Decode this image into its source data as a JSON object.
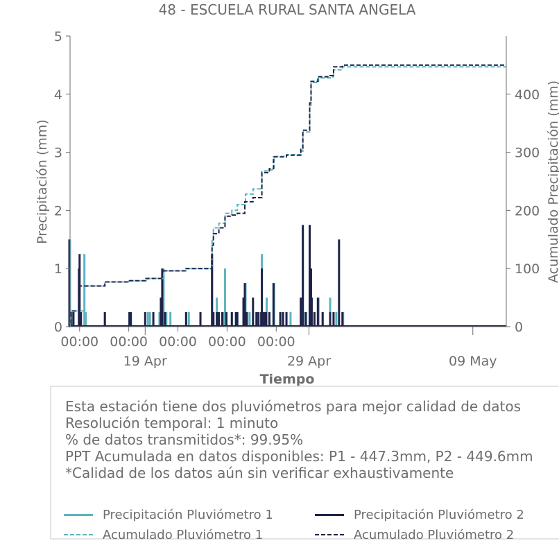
{
  "chart_data": {
    "type": "bar",
    "title": "48 - ESCUELA RURAL SANTA ANGELA",
    "xlabel": "Tiempo",
    "ylabel": "Precipitación (mm)",
    "y2label": "Acumulado Precipitación (mm)",
    "ylim": [
      0,
      5
    ],
    "y2lim": [
      0,
      500
    ],
    "yticks": [
      0,
      1,
      2,
      3,
      4,
      5
    ],
    "y2ticks": [
      0,
      100,
      200,
      300,
      400
    ],
    "xlim": [
      "2024-04-14T10:00",
      "2024-05-11T01:00"
    ],
    "xticks_major": [
      {
        "t": "2024-04-15T00:00",
        "label": "00:00",
        "sublabel": ""
      },
      {
        "t": "2024-04-18T00:00",
        "label": "00:00",
        "sublabel": ""
      },
      {
        "t": "2024-04-21T00:00",
        "label": "00:00",
        "sublabel": ""
      },
      {
        "t": "2024-04-24T00:00",
        "label": "00:00",
        "sublabel": ""
      },
      {
        "t": "2024-04-27T00:00",
        "label": "00:00",
        "sublabel": ""
      }
    ],
    "xticks_dates": [
      {
        "t": "2024-04-19T00:00",
        "label": "19 Apr"
      },
      {
        "t": "2024-04-29T00:00",
        "label": "29 Apr"
      },
      {
        "t": "2024-05-09T00:00",
        "label": "09 May"
      }
    ],
    "grid": false,
    "legend_position": "bottom",
    "series": [
      {
        "name": "Precipitación Pluviómetro 1",
        "kind": "bar",
        "color": "#5bb5bf",
        "points": [
          [
            "2024-04-14T10:00",
            1.5
          ],
          [
            "2024-04-14T11:00",
            0.25
          ],
          [
            "2024-04-14T14:00",
            0.25
          ],
          [
            "2024-04-15T07:00",
            1.25
          ],
          [
            "2024-04-15T09:00",
            0.25
          ],
          [
            "2024-04-16T13:00",
            0.25
          ],
          [
            "2024-04-18T01:00",
            0.25
          ],
          [
            "2024-04-18T03:00",
            0.25
          ],
          [
            "2024-04-19T04:00",
            0.25
          ],
          [
            "2024-04-19T07:00",
            0.25
          ],
          [
            "2024-04-19T21:00",
            0.25
          ],
          [
            "2024-04-20T03:00",
            1.0
          ],
          [
            "2024-04-20T07:00",
            0.25
          ],
          [
            "2024-04-20T13:00",
            0.25
          ],
          [
            "2024-04-21T12:00",
            0.25
          ],
          [
            "2024-04-21T16:00",
            0.25
          ],
          [
            "2024-04-22T09:00",
            0.25
          ],
          [
            "2024-04-23T02:00",
            1.25
          ],
          [
            "2024-04-23T04:00",
            0.25
          ],
          [
            "2024-04-23T09:00",
            0.5
          ],
          [
            "2024-04-23T12:00",
            0.25
          ],
          [
            "2024-04-23T18:00",
            0.25
          ],
          [
            "2024-04-23T21:00",
            1.0
          ],
          [
            "2024-04-23T23:00",
            0.25
          ],
          [
            "2024-04-24T07:00",
            0.25
          ],
          [
            "2024-04-24T13:00",
            0.25
          ],
          [
            "2024-04-24T15:00",
            0.25
          ],
          [
            "2024-04-25T00:00",
            0.25
          ],
          [
            "2024-04-25T03:00",
            0.75
          ],
          [
            "2024-04-25T09:00",
            0.25
          ],
          [
            "2024-04-25T14:00",
            0.25
          ],
          [
            "2024-04-25T22:00",
            0.25
          ],
          [
            "2024-04-26T03:00",
            1.25
          ],
          [
            "2024-04-26T05:00",
            0.25
          ],
          [
            "2024-04-26T10:00",
            0.5
          ],
          [
            "2024-04-26T14:00",
            0.25
          ],
          [
            "2024-04-26T21:00",
            0.75
          ],
          [
            "2024-04-27T06:00",
            0.25
          ],
          [
            "2024-04-27T10:00",
            0.25
          ],
          [
            "2024-04-27T15:00",
            0.25
          ],
          [
            "2024-04-27T21:00",
            0.25
          ],
          [
            "2024-04-28T12:00",
            0.5
          ],
          [
            "2024-04-28T15:00",
            1.75
          ],
          [
            "2024-04-28T20:00",
            0.25
          ],
          [
            "2024-04-29T01:00",
            1.75
          ],
          [
            "2024-04-29T03:00",
            1.0
          ],
          [
            "2024-04-29T08:00",
            0.25
          ],
          [
            "2024-04-29T14:00",
            0.5
          ],
          [
            "2024-04-29T20:00",
            0.25
          ],
          [
            "2024-04-30T07:00",
            0.5
          ],
          [
            "2024-04-30T12:00",
            0.25
          ],
          [
            "2024-04-30T16:00",
            0.25
          ],
          [
            "2024-05-01T02:00",
            0.25
          ]
        ]
      },
      {
        "name": "Precipitación Pluviómetro 2",
        "kind": "bar",
        "color": "#1f2349",
        "points": [
          [
            "2024-04-14T09:00",
            1.5
          ],
          [
            "2024-04-14T11:00",
            0.25
          ],
          [
            "2024-04-14T15:00",
            0.25
          ],
          [
            "2024-04-14T23:00",
            1.0
          ],
          [
            "2024-04-15T00:00",
            1.25
          ],
          [
            "2024-04-15T02:00",
            0.25
          ],
          [
            "2024-04-16T13:00",
            0.25
          ],
          [
            "2024-04-18T01:00",
            0.25
          ],
          [
            "2024-04-18T03:00",
            0.25
          ],
          [
            "2024-04-19T00:00",
            0.25
          ],
          [
            "2024-04-19T12:00",
            0.25
          ],
          [
            "2024-04-19T23:00",
            0.5
          ],
          [
            "2024-04-20T01:00",
            1.0
          ],
          [
            "2024-04-20T05:00",
            0.25
          ],
          [
            "2024-04-21T12:00",
            0.25
          ],
          [
            "2024-04-22T09:00",
            0.25
          ],
          [
            "2024-04-23T02:00",
            1.25
          ],
          [
            "2024-04-23T04:00",
            0.25
          ],
          [
            "2024-04-23T09:00",
            0.25
          ],
          [
            "2024-04-23T12:00",
            0.25
          ],
          [
            "2024-04-23T17:00",
            0.25
          ],
          [
            "2024-04-23T23:00",
            0.25
          ],
          [
            "2024-04-24T07:00",
            0.25
          ],
          [
            "2024-04-24T13:00",
            0.25
          ],
          [
            "2024-04-24T15:00",
            0.25
          ],
          [
            "2024-04-25T00:00",
            0.5
          ],
          [
            "2024-04-25T02:00",
            0.75
          ],
          [
            "2024-04-25T05:00",
            0.25
          ],
          [
            "2024-04-25T14:00",
            0.5
          ],
          [
            "2024-04-25T19:00",
            0.25
          ],
          [
            "2024-04-25T22:00",
            0.25
          ],
          [
            "2024-04-26T02:00",
            0.25
          ],
          [
            "2024-04-26T03:00",
            1.0
          ],
          [
            "2024-04-26T06:00",
            0.25
          ],
          [
            "2024-04-26T09:00",
            0.25
          ],
          [
            "2024-04-26T14:00",
            0.25
          ],
          [
            "2024-04-26T20:00",
            0.75
          ],
          [
            "2024-04-27T06:00",
            0.25
          ],
          [
            "2024-04-27T10:00",
            0.25
          ],
          [
            "2024-04-27T15:00",
            0.25
          ],
          [
            "2024-04-28T12:00",
            0.5
          ],
          [
            "2024-04-28T15:00",
            1.75
          ],
          [
            "2024-04-28T19:00",
            0.25
          ],
          [
            "2024-04-29T01:00",
            1.75
          ],
          [
            "2024-04-29T03:00",
            1.0
          ],
          [
            "2024-04-29T04:00",
            0.5
          ],
          [
            "2024-04-29T08:00",
            0.25
          ],
          [
            "2024-04-29T13:00",
            0.5
          ],
          [
            "2024-04-29T20:00",
            0.25
          ],
          [
            "2024-04-30T07:00",
            0.25
          ],
          [
            "2024-04-30T12:00",
            0.25
          ],
          [
            "2024-04-30T20:00",
            1.5
          ],
          [
            "2024-05-01T01:00",
            0.25
          ]
        ]
      },
      {
        "name": "Acumulado Pluviómetro 1",
        "kind": "step-dashed",
        "color": "#5bb5bf",
        "points": [
          [
            "2024-04-14T10:00",
            15
          ],
          [
            "2024-04-14T11:00",
            27
          ],
          [
            "2024-04-15T07:00",
            70
          ],
          [
            "2024-04-16T13:00",
            77
          ],
          [
            "2024-04-18T01:00",
            79
          ],
          [
            "2024-04-19T04:00",
            83
          ],
          [
            "2024-04-20T03:00",
            96
          ],
          [
            "2024-04-21T12:00",
            100
          ],
          [
            "2024-04-23T02:00",
            150
          ],
          [
            "2024-04-23T04:00",
            170
          ],
          [
            "2024-04-23T12:00",
            178
          ],
          [
            "2024-04-23T21:00",
            195
          ],
          [
            "2024-04-24T07:00",
            200
          ],
          [
            "2024-04-24T15:00",
            210
          ],
          [
            "2024-04-25T03:00",
            228
          ],
          [
            "2024-04-25T14:00",
            237
          ],
          [
            "2024-04-26T03:00",
            268
          ],
          [
            "2024-04-26T14:00",
            270
          ],
          [
            "2024-04-26T21:00",
            293
          ],
          [
            "2024-04-27T15:00",
            296
          ],
          [
            "2024-04-28T12:00",
            302
          ],
          [
            "2024-04-28T15:00",
            335
          ],
          [
            "2024-04-29T01:00",
            380
          ],
          [
            "2024-04-29T03:00",
            420
          ],
          [
            "2024-04-29T14:00",
            428
          ],
          [
            "2024-04-30T07:00",
            430
          ],
          [
            "2024-04-30T12:00",
            442
          ],
          [
            "2024-05-01T01:00",
            447
          ]
        ]
      },
      {
        "name": "Acumulado Pluviómetro 2",
        "kind": "step-dashed",
        "color": "#1f2349",
        "points": [
          [
            "2024-04-14T09:00",
            15
          ],
          [
            "2024-04-14T11:00",
            27
          ],
          [
            "2024-04-15T00:00",
            70
          ],
          [
            "2024-04-16T13:00",
            77
          ],
          [
            "2024-04-18T01:00",
            79
          ],
          [
            "2024-04-19T00:00",
            83
          ],
          [
            "2024-04-20T01:00",
            96
          ],
          [
            "2024-04-21T12:00",
            100
          ],
          [
            "2024-04-23T02:00",
            140
          ],
          [
            "2024-04-23T04:00",
            160
          ],
          [
            "2024-04-23T12:00",
            170
          ],
          [
            "2024-04-23T21:00",
            190
          ],
          [
            "2024-04-24T07:00",
            192
          ],
          [
            "2024-04-24T15:00",
            195
          ],
          [
            "2024-04-25T02:00",
            215
          ],
          [
            "2024-04-25T14:00",
            222
          ],
          [
            "2024-04-26T03:00",
            265
          ],
          [
            "2024-04-26T14:00",
            272
          ],
          [
            "2024-04-26T20:00",
            292
          ],
          [
            "2024-04-27T15:00",
            295
          ],
          [
            "2024-04-28T12:00",
            305
          ],
          [
            "2024-04-28T15:00",
            338
          ],
          [
            "2024-04-29T01:00",
            385
          ],
          [
            "2024-04-29T03:00",
            422
          ],
          [
            "2024-04-29T13:00",
            430
          ],
          [
            "2024-04-30T07:00",
            432
          ],
          [
            "2024-04-30T12:00",
            447
          ],
          [
            "2024-05-01T01:00",
            450
          ]
        ]
      }
    ]
  },
  "info": {
    "line1": "Esta estación tiene dos pluviómetros para mejor calidad de datos",
    "line2": "Resolución temporal: 1 minuto",
    "line3": "% de datos transmitidos*: 99.95%",
    "line4": "PPT Acumulada en datos disponibles: P1 - 447.3mm, P2 - 449.6mm",
    "line5": "*Calidad de los datos aún sin verificar exhaustivamente"
  },
  "legend": [
    {
      "label": "Precipitación Pluviómetro 1",
      "color": "#5bb5bf",
      "style": "solid"
    },
    {
      "label": "Precipitación Pluviómetro 2",
      "color": "#1f2349",
      "style": "solid"
    },
    {
      "label": "Acumulado Pluviómetro 1",
      "color": "#5bb5bf",
      "style": "dashed"
    },
    {
      "label": "Acumulado Pluviómetro 2",
      "color": "#1f2349",
      "style": "dashed"
    }
  ],
  "colors": {
    "text": "#6d6d6d",
    "axis": "#6d6d6d"
  }
}
